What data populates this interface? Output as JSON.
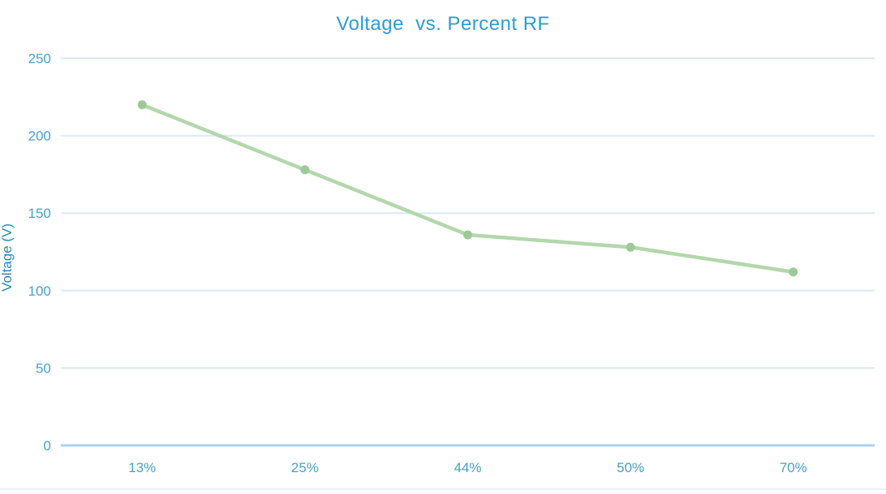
{
  "chart_data": {
    "type": "line",
    "title": "Voltage  vs. Percent RF",
    "xlabel": "",
    "ylabel": "Voltage (V)",
    "categories": [
      "13%",
      "25%",
      "44%",
      "50%",
      "70%"
    ],
    "series": [
      {
        "name": "Voltage (V)",
        "values": [
          220,
          178,
          136,
          128,
          112
        ]
      }
    ],
    "ylim": [
      0,
      250
    ],
    "yticks": [
      0,
      50,
      100,
      150,
      200,
      250
    ],
    "grid": "horizontal",
    "legend_position": "none",
    "colors": {
      "title": "#2b9cd8",
      "tick_labels": "#45a1cd",
      "ylabel": "#2387b4",
      "gridline": "#dbe9f3",
      "zero_line": "#a9d3ec",
      "line": "#b2d7ab",
      "marker": "#9cca97",
      "background": "#ffffff",
      "bottom_border": "#e9eef1"
    }
  }
}
